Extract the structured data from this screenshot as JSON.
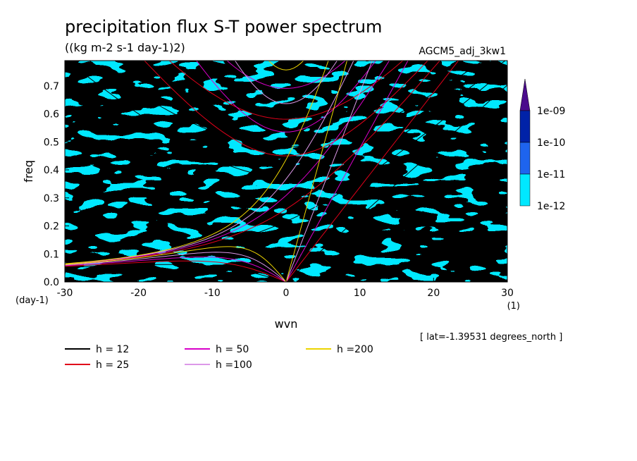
{
  "chart_data": {
    "type": "heatmap",
    "title": "precipitation flux S-T power spectrum",
    "subtitle": "((kg m-2 s-1 day-1)2)",
    "model_label": "AGCM5_adj_3kw1",
    "xlabel": "wvn",
    "ylabel": "freq",
    "x_unit": "(1)",
    "y_unit": "(day-1)",
    "xlim": [
      -30,
      30
    ],
    "ylim": [
      0,
      0.79
    ],
    "x_ticks": [
      "-30",
      "-20",
      "-10",
      "0",
      "10",
      "20",
      "30"
    ],
    "y_ticks": [
      "0.0",
      "0.1",
      "0.2",
      "0.3",
      "0.4",
      "0.5",
      "0.6",
      "0.7"
    ],
    "colorbar": {
      "labels": [
        "1e-09",
        "1e-10",
        "1e-11",
        "1e-12"
      ],
      "colors": [
        "#4b0c8c",
        "#0022a8",
        "#1e64ee",
        "#00e8ff"
      ]
    },
    "latitude_note": "[ lat=-1.39531 degrees_north ]",
    "series": [
      {
        "name": "h = 12",
        "color": "#000000",
        "equivalent_depth_m": 12
      },
      {
        "name": "h = 25",
        "color": "#e0001a",
        "equivalent_depth_m": 25
      },
      {
        "name": "h = 50",
        "color": "#d800c8",
        "equivalent_depth_m": 50
      },
      {
        "name": "h =100",
        "color": "#dc98e8",
        "equivalent_depth_m": 100
      },
      {
        "name": "h =200",
        "color": "#ecd400",
        "equivalent_depth_m": 200
      }
    ]
  }
}
